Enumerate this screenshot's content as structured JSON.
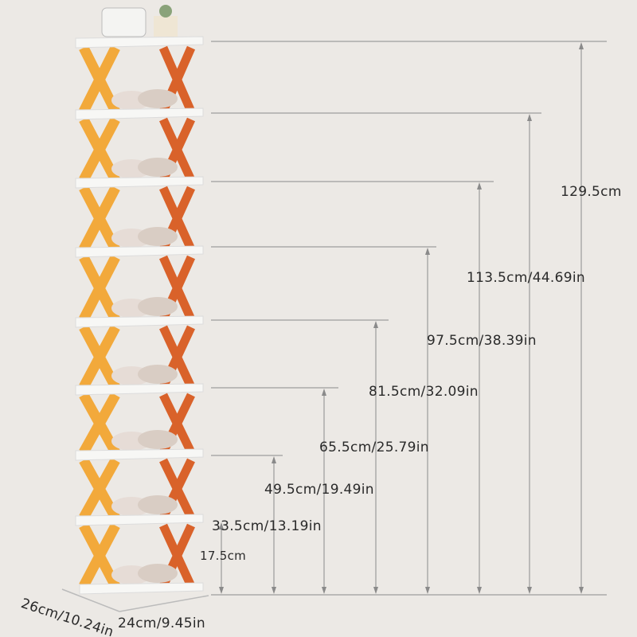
{
  "product": "shoe-rack",
  "tiers": 8,
  "colors": {
    "background": "#ece9e5",
    "shelf": "#f7f7f5",
    "leg_light": "#f2a93b",
    "leg_dark": "#d9622a",
    "dimension_line": "#8a8a8a"
  },
  "height_labels": [
    "129.5cm",
    "113.5cm/44.69in",
    "97.5cm/38.39in",
    "81.5cm/32.09in",
    "65.5cm/25.79in",
    "49.5cm/19.49in",
    "33.5cm/13.19in",
    "17.5cm"
  ],
  "depth_label": "26cm/10.24in",
  "width_label": "24cm/9.45in"
}
